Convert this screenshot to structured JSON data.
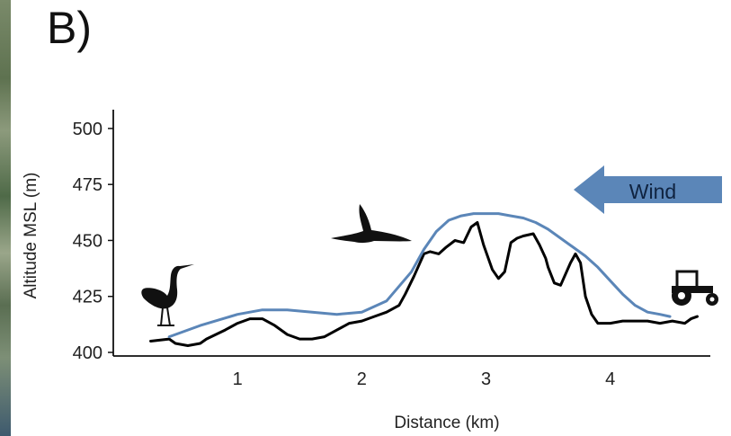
{
  "panel_label": "B)",
  "chart_data": {
    "type": "line",
    "title": "",
    "xlabel": "Distance (km)",
    "ylabel": "Altitude  MSL (m)",
    "xlim": [
      0,
      4.95
    ],
    "ylim": [
      400,
      510
    ],
    "x_ticks": [
      1,
      2,
      3,
      4
    ],
    "y_ticks": [
      400,
      425,
      450,
      475,
      500
    ],
    "grid": false,
    "series": [
      {
        "name": "",
        "color": "#000000",
        "x": [
          0.3,
          0.45,
          0.5,
          0.6,
          0.7,
          0.75,
          0.9,
          1.0,
          1.1,
          1.2,
          1.3,
          1.4,
          1.5,
          1.6,
          1.7,
          1.8,
          1.9,
          2.0,
          2.05,
          2.1,
          2.2,
          2.3,
          2.35,
          2.42,
          2.5,
          2.55,
          2.62,
          2.68,
          2.75,
          2.82,
          2.88,
          2.93,
          2.98,
          3.05,
          3.1,
          3.15,
          3.2,
          3.25,
          3.3,
          3.38,
          3.43,
          3.48,
          3.5,
          3.55,
          3.6,
          3.68,
          3.72,
          3.76,
          3.8,
          3.85,
          3.9,
          4.0,
          4.1,
          4.2,
          4.3,
          4.4,
          4.5,
          4.6,
          4.65,
          4.7
        ],
        "y": [
          405,
          406,
          404,
          403,
          404,
          406,
          410,
          413,
          415,
          415,
          412,
          408,
          406,
          406,
          407,
          410,
          413,
          414,
          415,
          416,
          418,
          421,
          426,
          434,
          444,
          445,
          444,
          447,
          450,
          449,
          456,
          458,
          448,
          437,
          433,
          436,
          449,
          451,
          452,
          453,
          448,
          442,
          438,
          431,
          430,
          440,
          444,
          440,
          425,
          417,
          413,
          413,
          414,
          414,
          414,
          413,
          414,
          413,
          415,
          416
        ]
      },
      {
        "name": "",
        "color": "#5b86b8",
        "x": [
          0.45,
          0.7,
          1.0,
          1.2,
          1.4,
          1.6,
          1.8,
          2.0,
          2.2,
          2.4,
          2.5,
          2.6,
          2.7,
          2.8,
          2.9,
          3.0,
          3.1,
          3.2,
          3.3,
          3.4,
          3.5,
          3.6,
          3.7,
          3.8,
          3.9,
          4.0,
          4.1,
          4.2,
          4.3,
          4.4,
          4.48
        ],
        "y": [
          407,
          412,
          417,
          419,
          419,
          418,
          417,
          418,
          423,
          436,
          446,
          454,
          459,
          461,
          462,
          462,
          462,
          461,
          460,
          458,
          455,
          451,
          447,
          443,
          438,
          432,
          426,
          421,
          418,
          417,
          416
        ]
      }
    ],
    "annotations": [
      {
        "type": "arrow",
        "text": "Wind",
        "direction": "left",
        "color": "#5b86b8"
      }
    ],
    "icons": [
      "heron-icon",
      "flying-crane-icon",
      "tractor-icon"
    ]
  }
}
